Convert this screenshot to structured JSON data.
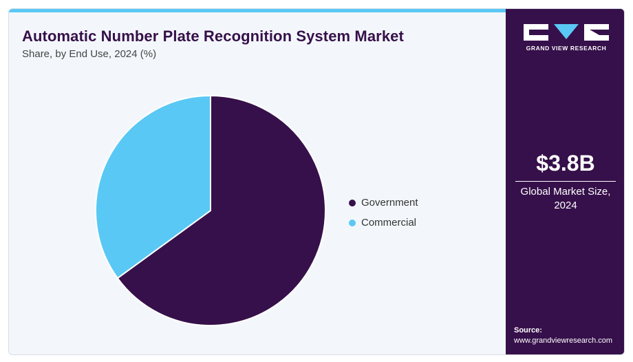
{
  "header": {
    "title": "Automatic Number Plate Recognition System Market",
    "subtitle": "Share, by End Use, 2024 (%)"
  },
  "brand": {
    "logo_text": "GRAND VIEW RESEARCH",
    "accent_color": "#5ac8f5",
    "primary_color": "#36104a"
  },
  "sidebar": {
    "market_value": "$3.8B",
    "market_label": "Global Market Size, 2024",
    "source_label": "Source:",
    "source_url": "www.grandviewresearch.com"
  },
  "chart_data": {
    "type": "pie",
    "title": "Automatic Number Plate Recognition System Market",
    "subtitle": "Share, by End Use, 2024 (%)",
    "categories": [
      "Government",
      "Commercial"
    ],
    "values": [
      65,
      35
    ],
    "colors": [
      "#36104a",
      "#5ac8f5"
    ],
    "legend_position": "right"
  }
}
